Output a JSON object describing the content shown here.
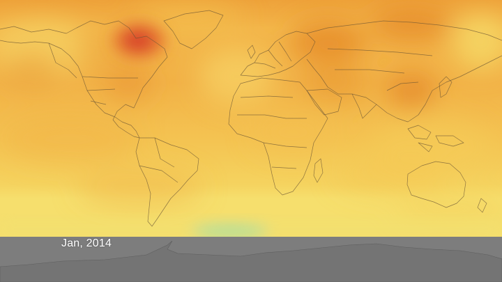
{
  "map": {
    "date_label": "Jan, 2014",
    "colors": {
      "field_base": "#f3b84c",
      "field_light": "#f6dc6a",
      "field_dark": "#e99431",
      "hotspot": "#d8442a",
      "low_concentration": "#a9dfa0",
      "antarctica_band": "#7d7d7d",
      "coastline": "#6a5434"
    }
  }
}
